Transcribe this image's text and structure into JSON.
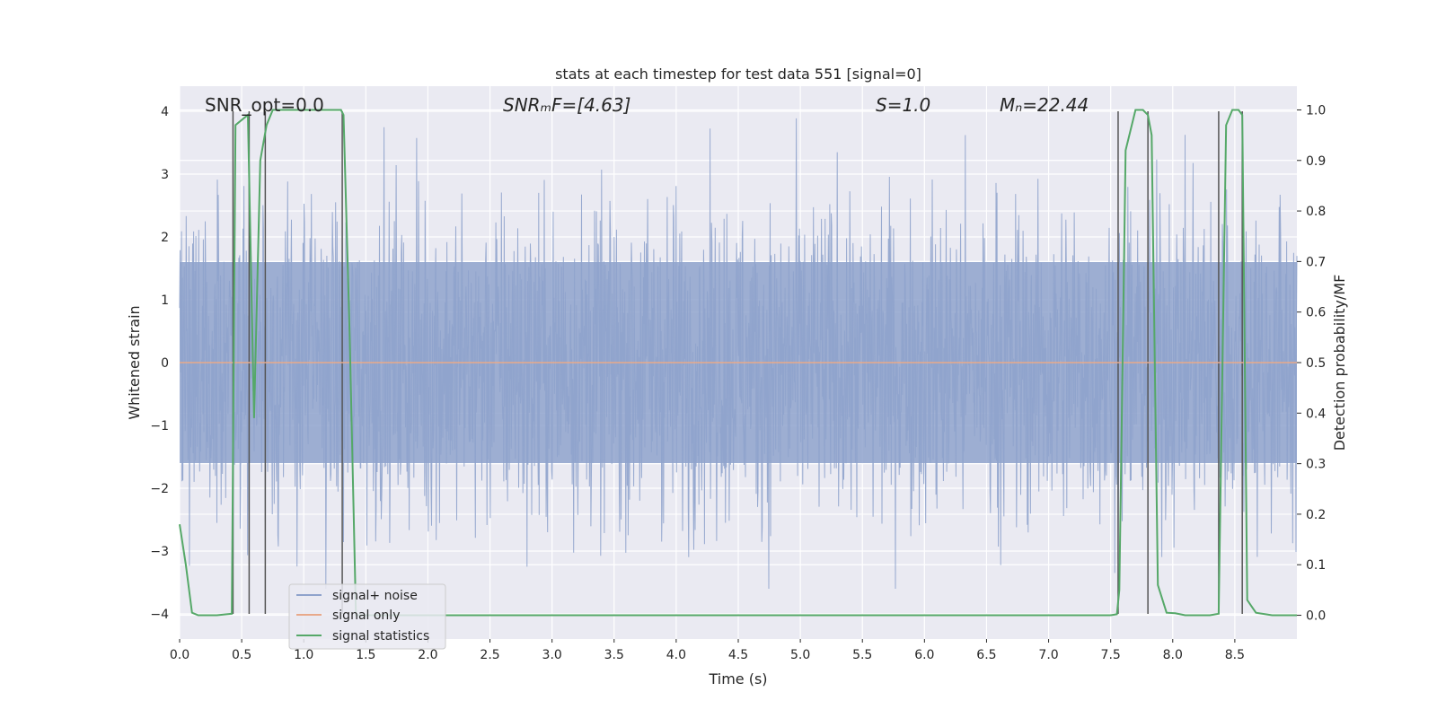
{
  "chart_data": {
    "type": "line",
    "title": "stats at each timestep for test data 551 [signal=0]",
    "xlabel": "Time (s)",
    "ylabel": "Whitened strain",
    "y2label": "Detection probability/MF",
    "xlim": [
      0.0,
      9.0
    ],
    "ylim": [
      -4.4,
      4.4
    ],
    "y2lim": [
      -0.047,
      1.047
    ],
    "xticks": [
      "0.0",
      "0.5",
      "1.0",
      "1.5",
      "2.0",
      "2.5",
      "3.0",
      "3.5",
      "4.0",
      "4.5",
      "5.0",
      "5.5",
      "6.0",
      "6.5",
      "7.0",
      "7.5",
      "8.0",
      "8.5"
    ],
    "yticks": [
      "4",
      "3",
      "2",
      "1",
      "0",
      "−1",
      "−2",
      "−3",
      "−4"
    ],
    "y2ticks": [
      "1.0",
      "0.9",
      "0.8",
      "0.7",
      "0.6",
      "0.5",
      "0.4",
      "0.3",
      "0.2",
      "0.1",
      "0.0"
    ],
    "grid": true,
    "legend_position": "lower-left",
    "annotations": {
      "snr_opt": "SNR_opt=0.0",
      "snr_mf": "SNRₘF=[4.63]",
      "s": "S=1.0",
      "mc": "Mₙ=22.44"
    },
    "series": [
      {
        "name": "signal+ noise",
        "color": "#8fa3cc",
        "description_of_values": "whitened strain noise, roughly within [-3.6, 4.0], mean 0",
        "envelope": {
          "typical_abs": 1.6,
          "max": 3.95,
          "min": -3.6
        }
      },
      {
        "name": "signal only",
        "color": "#e8a98a",
        "x": [
          0.0,
          9.0
        ],
        "y": [
          0.0,
          0.0
        ]
      },
      {
        "name": "signal statistics",
        "color": "#55a868",
        "axis": "right",
        "x": [
          0.0,
          0.05,
          0.1,
          0.15,
          0.2,
          0.3,
          0.42,
          0.45,
          0.5,
          0.55,
          0.6,
          0.65,
          0.7,
          0.75,
          0.8,
          0.9,
          1.0,
          1.1,
          1.2,
          1.3,
          1.32,
          1.37,
          1.42,
          1.5,
          2.0,
          3.0,
          4.0,
          5.0,
          6.0,
          7.0,
          7.5,
          7.55,
          7.57,
          7.62,
          7.7,
          7.76,
          7.8,
          7.83,
          7.88,
          7.95,
          8.02,
          8.1,
          8.2,
          8.3,
          8.37,
          8.43,
          8.48,
          8.53,
          8.56,
          8.6,
          8.67,
          8.8,
          9.0
        ],
        "y": [
          0.18,
          0.1,
          0.005,
          0.0,
          0.0,
          0.0,
          0.003,
          0.97,
          0.98,
          0.99,
          0.39,
          0.9,
          0.97,
          1.0,
          1.0,
          1.0,
          1.0,
          1.0,
          1.0,
          1.0,
          0.99,
          0.55,
          0.0,
          0.0,
          0.0,
          0.0,
          0.0,
          0.0,
          0.0,
          0.0,
          0.0,
          0.002,
          0.05,
          0.92,
          1.0,
          1.0,
          0.99,
          0.95,
          0.06,
          0.005,
          0.004,
          0.0,
          0.0,
          0.0,
          0.003,
          0.97,
          1.0,
          1.0,
          0.99,
          0.03,
          0.005,
          0.0,
          0.0
        ]
      }
    ],
    "vertical_markers": {
      "color": "#555555",
      "x": [
        0.43,
        0.56,
        0.69,
        1.31,
        7.56,
        7.8,
        8.37,
        8.56
      ]
    }
  }
}
